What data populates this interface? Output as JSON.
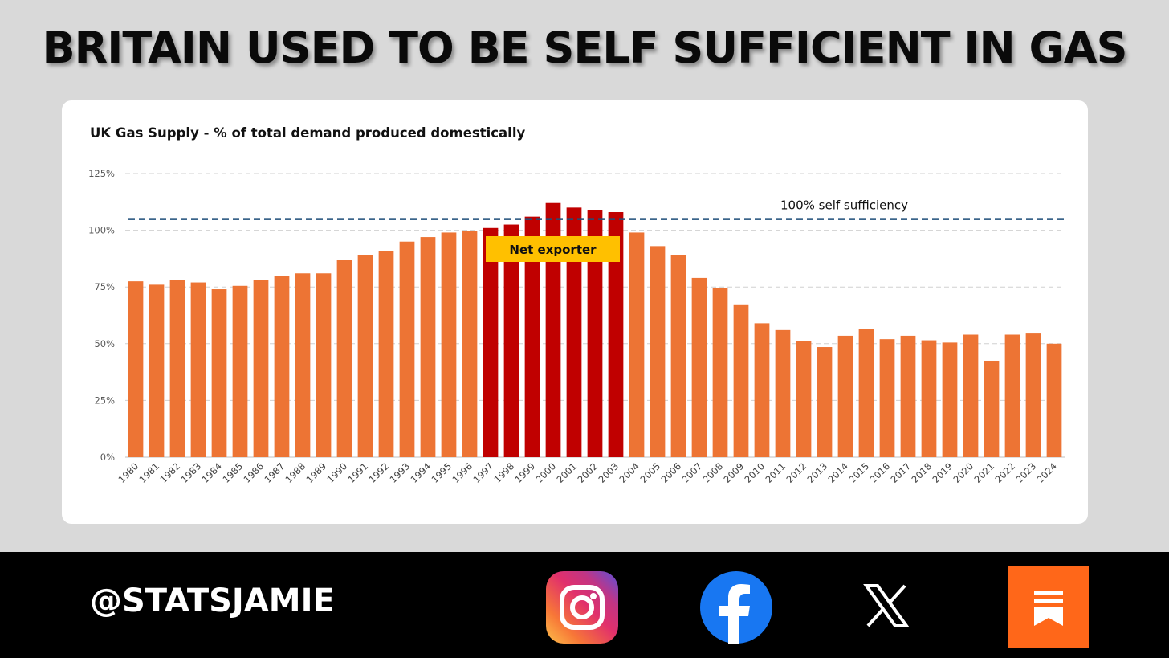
{
  "headline": "BRITAIN USED TO BE SELF SUFFICIENT IN GAS",
  "footer": {
    "handle": "@STATSJAMIE"
  },
  "social_icons": [
    "instagram-icon",
    "facebook-icon",
    "x-icon",
    "substack-icon"
  ],
  "colors": {
    "domestic_bar": "#ed7434",
    "exporter_bar": "#c00000",
    "reference_line": "#1f4e79",
    "label_box": "#ffc000"
  },
  "chart_data": {
    "type": "bar",
    "title": "UK Gas Supply - % of total demand produced domestically",
    "xlabel": "",
    "ylabel": "",
    "ylim": [
      0,
      125
    ],
    "yticks": [
      0,
      25,
      50,
      75,
      100,
      125
    ],
    "ytick_labels": [
      "0%",
      "25%",
      "50%",
      "75%",
      "100%",
      "125%"
    ],
    "grid": true,
    "categories": [
      "1980",
      "1981",
      "1982",
      "1983",
      "1984",
      "1985",
      "1986",
      "1987",
      "1988",
      "1989",
      "1990",
      "1991",
      "1992",
      "1993",
      "1994",
      "1995",
      "1996",
      "1997",
      "1998",
      "1999",
      "2000",
      "2001",
      "2002",
      "2003",
      "2004",
      "2005",
      "2006",
      "2007",
      "2008",
      "2009",
      "2010",
      "2011",
      "2012",
      "2013",
      "2014",
      "2015",
      "2016",
      "2017",
      "2018",
      "2019",
      "2020",
      "2021",
      "2022",
      "2023",
      "2024"
    ],
    "values": [
      77.5,
      76,
      78,
      77,
      74,
      75.5,
      78,
      80,
      81,
      81,
      87,
      89,
      91,
      95,
      97,
      99,
      99.8,
      101,
      102.5,
      106,
      112,
      110,
      109,
      108,
      99,
      93,
      89,
      79,
      74.5,
      67,
      59,
      56,
      51,
      48.5,
      53.5,
      56.5,
      52,
      53.5,
      51.5,
      50.5,
      54,
      42.5,
      54,
      54.5,
      50
    ],
    "net_exporter_years": [
      "1997",
      "1998",
      "1999",
      "2000",
      "2001",
      "2002",
      "2003"
    ],
    "reference_line": {
      "value": 100,
      "label": "100% self sufficiency"
    },
    "annotations": [
      {
        "text": "Net exporter",
        "years": [
          "1997",
          "2003"
        ]
      }
    ]
  }
}
